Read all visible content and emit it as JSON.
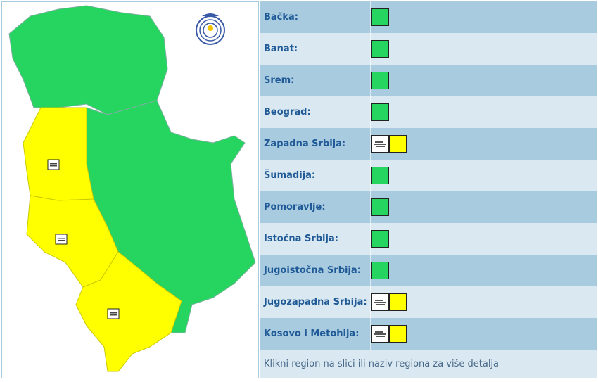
{
  "colors": {
    "green": "#26d460",
    "yellow": "#ffff00"
  },
  "regions": [
    {
      "name": "Bačka:",
      "level": "green",
      "icons": []
    },
    {
      "name": "Banat:",
      "level": "green",
      "icons": []
    },
    {
      "name": "Srem:",
      "level": "green",
      "icons": []
    },
    {
      "name": "Beograd:",
      "level": "green",
      "icons": []
    },
    {
      "name": "Zapadna Srbija:",
      "level": "yellow",
      "icons": [
        "fog-icon"
      ]
    },
    {
      "name": "Šumadija:",
      "level": "green",
      "icons": []
    },
    {
      "name": "Pomoravlje:",
      "level": "green",
      "icons": []
    },
    {
      "name": "Istočna Srbija:",
      "level": "green",
      "icons": []
    },
    {
      "name": "Jugoistočna Srbija:",
      "level": "green",
      "icons": []
    },
    {
      "name": "Jugozapadna Srbija:",
      "level": "yellow",
      "icons": [
        "fog-icon"
      ]
    },
    {
      "name": "Kosovo i Metohija:",
      "level": "yellow",
      "icons": [
        "fog-icon"
      ]
    }
  ],
  "footer": "Klikni region na slici ili naziv regiona za više detalja"
}
